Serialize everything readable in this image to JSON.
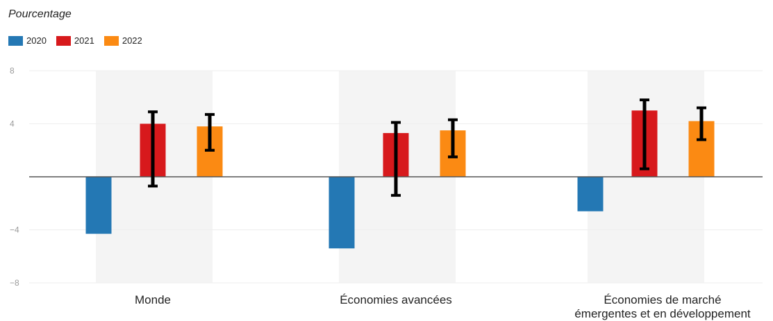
{
  "chart_data": {
    "type": "bar",
    "ylabel": "Pourcentage",
    "categories": [
      "Monde",
      "Économies avancées",
      [
        "Économies de marché",
        "émergentes et en développement"
      ]
    ],
    "series": [
      {
        "name": "2020",
        "color": "#2478b4",
        "values": [
          -4.3,
          -5.4,
          -2.6
        ],
        "errors": null
      },
      {
        "name": "2021",
        "color": "#d7191c",
        "values": [
          4.0,
          3.3,
          5.0
        ],
        "errors": [
          [
            -0.7,
            4.9
          ],
          [
            -1.4,
            4.1
          ],
          [
            0.6,
            5.8
          ]
        ]
      },
      {
        "name": "2022",
        "color": "#fb8a13",
        "values": [
          3.8,
          3.5,
          4.2
        ],
        "errors": [
          [
            2.0,
            4.7
          ],
          [
            1.5,
            4.3
          ],
          [
            2.8,
            5.2
          ]
        ]
      }
    ],
    "yticks": [
      8,
      4,
      -4,
      -8
    ],
    "ylim": [
      -8,
      8
    ],
    "legend_position": "top-left",
    "grid": true,
    "band_color": "#f4f4f4",
    "gridline_color": "#eeeeee",
    "zero_line_color": "#555555",
    "errorbar_color": "#000000"
  }
}
